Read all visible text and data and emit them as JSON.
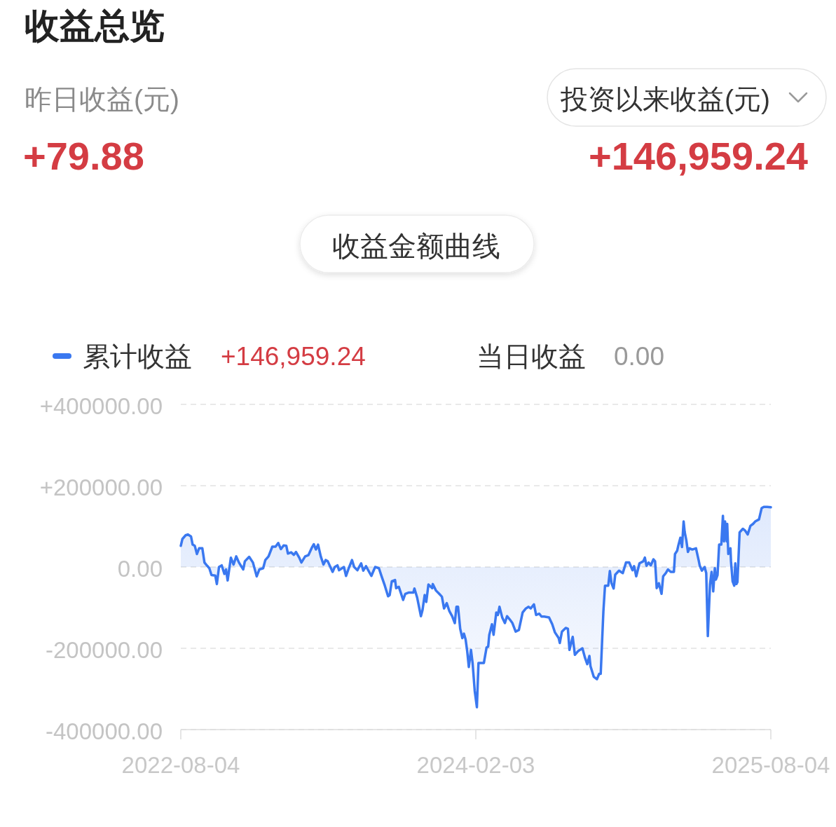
{
  "chart_data": {
    "type": "area",
    "title": "收益总览",
    "annotations": [
      "昨日收益(元)",
      "+79.88",
      "投资以来收益(元)",
      "+146,959.24",
      "收益金额曲线",
      "+146,959.24",
      "当日收益",
      "0.00"
    ],
    "x": [
      "2022-08-04",
      "2022-08-07",
      "2022-08-13",
      "2022-08-17",
      "2022-08-23",
      "2022-08-26",
      "2022-08-30",
      "2022-09-03",
      "2022-09-07",
      "2022-09-13",
      "2022-09-17",
      "2022-09-22",
      "2022-09-26",
      "2022-09-30",
      "2022-10-07",
      "2022-10-10",
      "2022-10-14",
      "2022-10-19",
      "2022-10-24",
      "2022-10-27",
      "2022-10-30",
      "2022-11-05",
      "2022-11-10",
      "2022-11-15",
      "2022-11-20",
      "2022-11-28",
      "2022-12-01",
      "2022-12-09",
      "2022-12-16",
      "2022-12-23",
      "2022-12-28",
      "2023-01-04",
      "2023-01-08",
      "2023-01-14",
      "2023-01-21",
      "2023-01-27",
      "2023-02-01",
      "2023-02-06",
      "2023-02-11",
      "2023-02-16",
      "2023-02-19",
      "2023-02-25",
      "2023-03-02",
      "2023-03-06",
      "2023-03-12",
      "2023-03-16",
      "2023-03-23",
      "2023-03-29",
      "2023-04-05",
      "2023-04-08",
      "2023-04-12",
      "2023-04-16",
      "2023-04-21",
      "2023-04-26",
      "2023-04-30",
      "2023-05-04",
      "2023-05-13",
      "2023-05-17",
      "2023-05-22",
      "2023-05-25",
      "2023-06-03",
      "2023-06-07",
      "2023-06-12",
      "2023-06-18",
      "2023-06-22",
      "2023-06-28",
      "2023-07-05",
      "2023-07-09",
      "2023-07-14",
      "2023-07-24",
      "2023-07-31",
      "2023-08-07",
      "2023-08-12",
      "2023-08-18",
      "2023-08-24",
      "2023-08-27",
      "2023-08-31",
      "2023-09-06",
      "2023-09-08",
      "2023-09-13",
      "2023-09-21",
      "2023-09-25",
      "2023-10-01",
      "2023-10-10",
      "2023-10-12",
      "2023-10-17",
      "2023-10-24",
      "2023-10-27",
      "2023-10-31",
      "2023-11-03",
      "2023-11-07",
      "2023-11-14",
      "2023-11-15",
      "2023-11-21",
      "2023-11-27",
      "2023-12-02",
      "2023-12-06",
      "2023-12-11",
      "2023-12-16",
      "2023-12-21",
      "2023-12-26",
      "2023-12-29",
      "2024-01-01",
      "2024-01-05",
      "2024-01-09",
      "2024-01-12",
      "2024-01-15",
      "2024-01-18",
      "2024-01-21",
      "2024-01-25",
      "2024-01-28",
      "2024-02-01",
      "2024-02-05",
      "2024-02-08",
      "2024-02-18",
      "2024-02-23",
      "2024-02-26",
      "2024-02-28",
      "2024-03-04",
      "2024-03-07",
      "2024-03-12",
      "2024-03-15",
      "2024-03-18",
      "2024-03-23",
      "2024-03-28",
      "2024-04-01",
      "2024-04-06",
      "2024-04-11",
      "2024-04-17",
      "2024-04-23",
      "2024-04-30",
      "2024-05-06",
      "2024-05-11",
      "2024-05-15",
      "2024-05-21",
      "2024-05-25",
      "2024-05-31",
      "2024-06-04",
      "2024-06-09",
      "2024-06-18",
      "2024-06-24",
      "2024-06-29",
      "2024-07-06",
      "2024-07-08",
      "2024-07-12",
      "2024-07-19",
      "2024-07-23",
      "2024-07-26",
      "2024-08-01",
      "2024-08-05",
      "2024-08-11",
      "2024-08-19",
      "2024-08-24",
      "2024-08-28",
      "2024-09-01",
      "2024-09-03",
      "2024-09-09",
      "2024-09-15",
      "2024-09-19",
      "2024-09-22",
      "2024-09-27",
      "2024-09-30",
      "2024-10-06",
      "2024-10-09",
      "2024-10-12",
      "2024-10-16",
      "2024-10-19",
      "2024-10-26",
      "2024-11-02",
      "2024-11-08",
      "2024-11-14",
      "2024-11-20",
      "2024-11-23",
      "2024-11-27",
      "2024-12-03",
      "2024-12-10",
      "2024-12-13",
      "2024-12-16",
      "2024-12-20",
      "2024-12-24",
      "2024-12-29",
      "2025-01-01",
      "2025-01-04",
      "2025-01-08",
      "2025-01-13",
      "2025-01-16",
      "2025-01-21",
      "2025-01-25",
      "2025-01-30",
      "2025-02-05",
      "2025-02-07",
      "2025-02-11",
      "2025-02-13",
      "2025-02-17",
      "2025-02-20",
      "2025-02-23",
      "2025-02-25",
      "2025-02-28",
      "2025-03-03",
      "2025-03-06",
      "2025-03-11",
      "2025-03-18",
      "2025-03-23",
      "2025-03-25",
      "2025-03-29",
      "2025-04-03",
      "2025-04-06",
      "2025-04-09",
      "2025-04-13",
      "2025-04-16",
      "2025-04-19",
      "2025-04-22",
      "2025-04-24",
      "2025-04-27",
      "2025-04-30",
      "2025-05-04",
      "2025-05-07",
      "2025-05-09",
      "2025-05-11",
      "2025-05-14",
      "2025-05-15",
      "2025-05-17",
      "2025-05-21",
      "2025-05-22",
      "2025-05-25",
      "2025-05-28",
      "2025-05-30",
      "2025-06-01",
      "2025-06-03",
      "2025-06-07",
      "2025-06-13",
      "2025-06-17",
      "2025-06-22",
      "2025-06-27",
      "2025-07-02",
      "2025-07-06",
      "2025-07-13",
      "2025-07-18",
      "2025-07-22",
      "2025-07-28",
      "2025-08-04"
    ],
    "series": [
      {
        "name": "累计收益",
        "color": "#3a78f0",
        "values": [
          52000,
          69000,
          78000,
          80000,
          75000,
          55000,
          52000,
          32000,
          46000,
          46000,
          11000,
          3000,
          -3000,
          -20000,
          -21000,
          -42000,
          0,
          4000,
          -17000,
          -6000,
          -33000,
          23000,
          6000,
          26000,
          11000,
          -6000,
          14000,
          25000,
          11000,
          -23000,
          -6000,
          -3000,
          17000,
          26000,
          50000,
          50000,
          59000,
          44000,
          53000,
          52000,
          33000,
          36000,
          30000,
          37000,
          23000,
          11000,
          26000,
          29000,
          49000,
          56000,
          43000,
          55000,
          26000,
          6000,
          17000,
          14000,
          -12000,
          0,
          4000,
          -8000,
          0,
          -22000,
          -3000,
          17000,
          0,
          -8000,
          9000,
          -9000,
          2000,
          -22000,
          0,
          -3000,
          -23000,
          -46000,
          -72000,
          -69000,
          -35000,
          -32000,
          -52000,
          -49000,
          -81000,
          -66000,
          -63000,
          -63000,
          -53000,
          -75000,
          -121000,
          -106000,
          -69000,
          -86000,
          -43000,
          -52000,
          -42000,
          -58000,
          -66000,
          -73000,
          -102000,
          -89000,
          -109000,
          -121000,
          -138000,
          -98000,
          -98000,
          -152000,
          -175000,
          -164000,
          -178000,
          -207000,
          -246000,
          -204000,
          -236000,
          -305000,
          -345000,
          -236000,
          -236000,
          -198000,
          -196000,
          -167000,
          -141000,
          -167000,
          -112000,
          -118000,
          -98000,
          -124000,
          -138000,
          -121000,
          -129000,
          -138000,
          -159000,
          -155000,
          -112000,
          -102000,
          -98000,
          -102000,
          -92000,
          -118000,
          -115000,
          -122000,
          -122000,
          -124000,
          -141000,
          -161000,
          -175000,
          -187000,
          -159000,
          -150000,
          -152000,
          -204000,
          -172000,
          -216000,
          -207000,
          -200000,
          -224000,
          -239000,
          -219000,
          -244000,
          -270000,
          -276000,
          -263000,
          -263000,
          -109000,
          -46000,
          -46000,
          -10000,
          -40000,
          -53000,
          -19000,
          -9000,
          -15000,
          11000,
          11000,
          -8000,
          2000,
          -23000,
          9000,
          14000,
          23000,
          3000,
          11000,
          4000,
          19000,
          14000,
          -52000,
          -40000,
          -66000,
          -23000,
          -15000,
          -6000,
          -12000,
          -12000,
          32000,
          40000,
          52000,
          72000,
          49000,
          112000,
          86000,
          66000,
          37000,
          46000,
          43000,
          46000,
          16000,
          3000,
          -9000,
          0,
          -15000,
          -170000,
          -43000,
          -12000,
          -60000,
          -3000,
          -31000,
          -20000,
          55000,
          55000,
          126000,
          63000,
          112000,
          63000,
          106000,
          32000,
          46000,
          14000,
          -35000,
          -46000,
          9000,
          -42000,
          -37000,
          85000,
          94000,
          90000,
          80000,
          101000,
          106000,
          112000,
          117000,
          145000,
          148000,
          148000,
          147000
        ]
      }
    ],
    "xlim": [
      "2022-08-04",
      "2025-08-04"
    ],
    "xticks": [
      "2022-08-04",
      "2024-02-03",
      "2025-08-04"
    ],
    "ylim": [
      -400000,
      400000
    ],
    "yticks": [
      {
        "value": -400000,
        "label": "-400000.00"
      },
      {
        "value": -200000,
        "label": "-200000.00"
      },
      {
        "value": 0,
        "label": "0.00"
      },
      {
        "value": 200000,
        "label": "+200000.00"
      },
      {
        "value": 400000,
        "label": "+400000.00"
      }
    ],
    "grid": "y",
    "legend": "top left",
    "line_style": "solid"
  }
}
